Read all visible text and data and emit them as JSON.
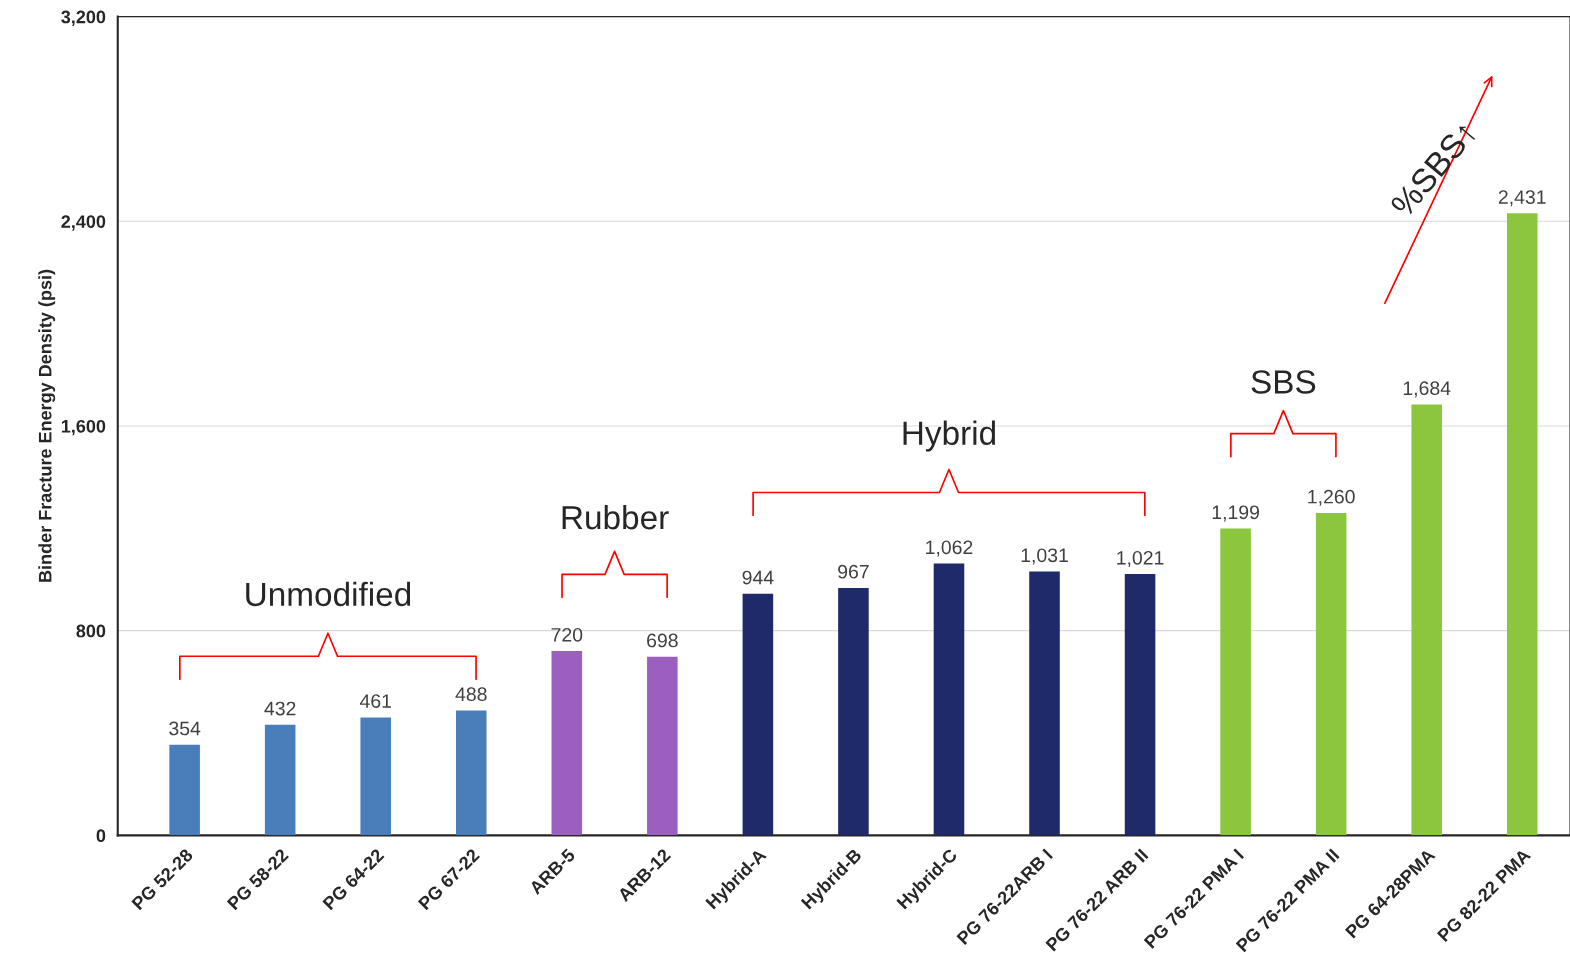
{
  "chart_data": {
    "type": "bar",
    "ylabel": "Binder Fracture Energy Density (psi)",
    "categories": [
      "PG 52-28",
      "PG 58-22",
      "PG 64-22",
      "PG 67-22",
      "ARB-5",
      "ARB-12",
      "Hybrid-A",
      "Hybrid-B",
      "Hybrid-C",
      "PG 76-22ARB I",
      "PG 76-22 ARB II",
      "PG 76-22 PMA I",
      "PG 76-22 PMA II",
      "PG 64-28PMA",
      "PG 82-22 PMA"
    ],
    "values": [
      354,
      432,
      461,
      488,
      720,
      698,
      944,
      967,
      1062,
      1031,
      1021,
      1199,
      1260,
      1684,
      2431
    ],
    "colors": [
      "#4a7ebb",
      "#4a7ebb",
      "#4a7ebb",
      "#4a7ebb",
      "#9b5fc0",
      "#9b5fc0",
      "#1f2a6b",
      "#1f2a6b",
      "#1f2a6b",
      "#1f2a6b",
      "#1f2a6b",
      "#8cc63f",
      "#8cc63f",
      "#8cc63f",
      "#8cc63f"
    ],
    "ylim": [
      0,
      3200
    ],
    "yticks": [
      {
        "value": 0,
        "label": "0"
      },
      {
        "value": 800,
        "label": "800"
      },
      {
        "value": 1600,
        "label": "1,600"
      },
      {
        "value": 2400,
        "label": "2,400"
      },
      {
        "value": 3200,
        "label": "3,200"
      }
    ],
    "grid": "y",
    "value_labels": [
      "354",
      "432",
      "461",
      "488",
      "720",
      "698",
      "944",
      "967",
      "1,062",
      "1,031",
      "1,021",
      "1,199",
      "1,260",
      "1,684",
      "2,431"
    ],
    "annotations": [
      "Unmodified",
      "Rubber",
      "Hybrid",
      "SBS",
      "%SBS↑"
    ]
  }
}
